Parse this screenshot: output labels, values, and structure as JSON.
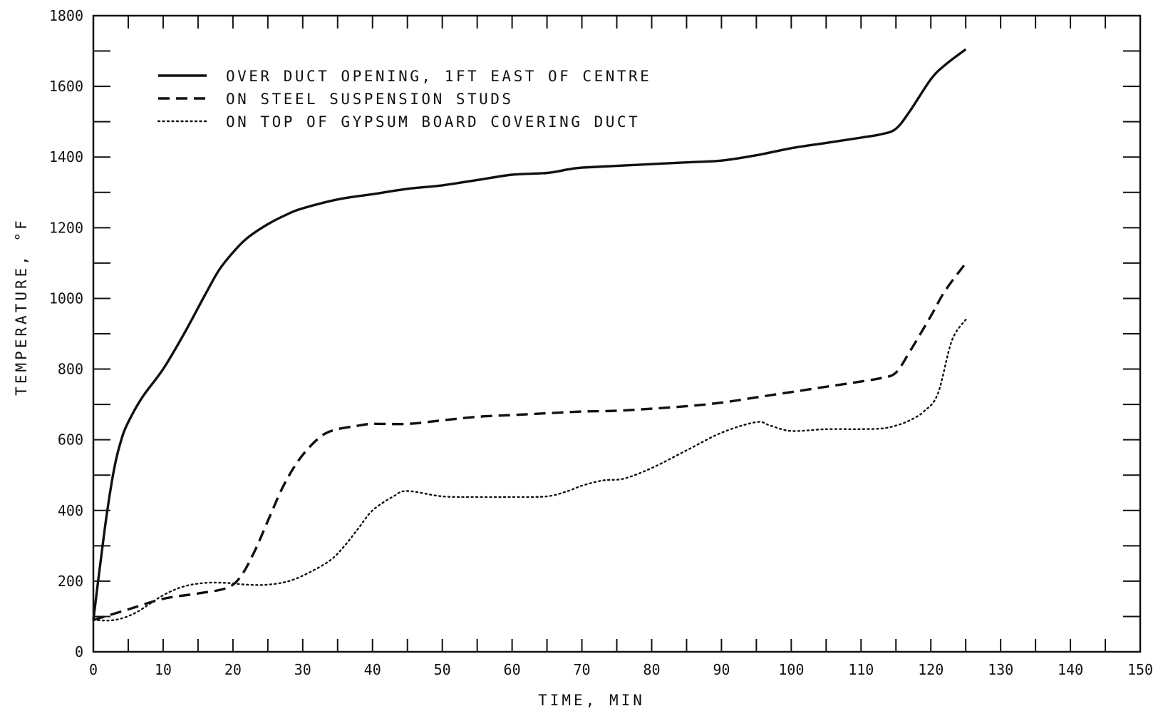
{
  "chart_data": {
    "type": "line",
    "title": "",
    "xlabel": "TIME, MIN",
    "ylabel": "TEMPERATURE, °F",
    "xlim": [
      0,
      150
    ],
    "ylim": [
      0,
      1800
    ],
    "x_ticks": [
      0,
      10,
      20,
      30,
      40,
      50,
      60,
      70,
      80,
      90,
      100,
      110,
      120,
      130,
      140,
      150
    ],
    "y_ticks": [
      0,
      200,
      400,
      600,
      800,
      1000,
      1200,
      1400,
      1600,
      1800
    ],
    "grid": false,
    "legend_position": "top-left",
    "series": [
      {
        "name": "OVER DUCT OPENING, 1FT EAST OF CENTRE",
        "style": "solid",
        "x": [
          0,
          1,
          2,
          3,
          4,
          5,
          7,
          10,
          13,
          16,
          18,
          20,
          22,
          25,
          28,
          30,
          35,
          40,
          45,
          50,
          55,
          60,
          65,
          68,
          70,
          75,
          80,
          85,
          90,
          95,
          100,
          105,
          110,
          113,
          115,
          117,
          120,
          122,
          125
        ],
        "y": [
          90,
          250,
          400,
          520,
          600,
          650,
          720,
          800,
          900,
          1010,
          1080,
          1130,
          1170,
          1210,
          1240,
          1255,
          1280,
          1295,
          1310,
          1320,
          1335,
          1350,
          1355,
          1365,
          1370,
          1375,
          1380,
          1385,
          1390,
          1405,
          1425,
          1440,
          1455,
          1465,
          1480,
          1530,
          1620,
          1660,
          1705
        ]
      },
      {
        "name": "ON STEEL SUSPENSION STUDS",
        "style": "dashed",
        "x": [
          0,
          5,
          10,
          15,
          19,
          21,
          23,
          25,
          27,
          29,
          31,
          33,
          35,
          38,
          40,
          45,
          50,
          55,
          60,
          65,
          70,
          75,
          80,
          85,
          90,
          95,
          100,
          105,
          110,
          113,
          115,
          117,
          120,
          122,
          125
        ],
        "y": [
          90,
          120,
          150,
          165,
          180,
          210,
          280,
          370,
          460,
          530,
          580,
          615,
          630,
          640,
          645,
          645,
          655,
          665,
          670,
          675,
          680,
          682,
          688,
          695,
          705,
          720,
          735,
          750,
          765,
          775,
          790,
          850,
          950,
          1020,
          1100
        ]
      },
      {
        "name": "ON TOP OF GYPSUM BOARD COVERING DUCT",
        "style": "dotted",
        "x": [
          0,
          3,
          6,
          10,
          13,
          16,
          19,
          22,
          25,
          28,
          31,
          34,
          36,
          38,
          40,
          43,
          45,
          50,
          55,
          60,
          65,
          68,
          70,
          73,
          76,
          80,
          85,
          90,
          95,
          97,
          100,
          105,
          110,
          113,
          115,
          117,
          119,
          121,
          123,
          125
        ],
        "y": [
          90,
          90,
          110,
          160,
          185,
          195,
          195,
          190,
          190,
          200,
          225,
          260,
          300,
          350,
          400,
          440,
          455,
          440,
          438,
          438,
          440,
          455,
          470,
          485,
          490,
          520,
          570,
          620,
          650,
          640,
          625,
          630,
          630,
          632,
          640,
          655,
          680,
          730,
          880,
          940
        ]
      }
    ]
  }
}
